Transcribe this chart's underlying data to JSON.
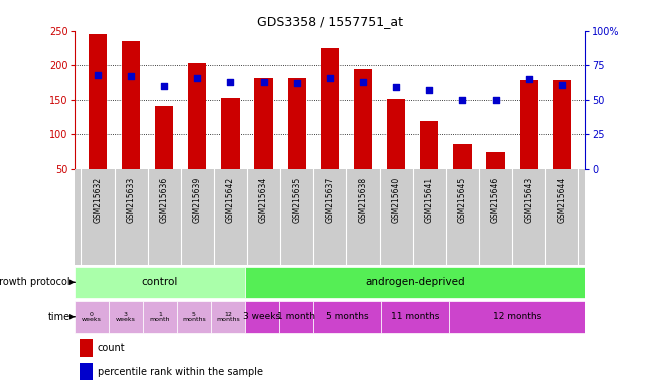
{
  "title": "GDS3358 / 1557751_at",
  "samples": [
    "GSM215632",
    "GSM215633",
    "GSM215636",
    "GSM215639",
    "GSM215642",
    "GSM215634",
    "GSM215635",
    "GSM215637",
    "GSM215638",
    "GSM215640",
    "GSM215641",
    "GSM215645",
    "GSM215646",
    "GSM215643",
    "GSM215644"
  ],
  "counts": [
    245,
    235,
    141,
    204,
    152,
    181,
    181,
    225,
    194,
    151,
    120,
    86,
    75,
    178,
    178
  ],
  "percentile": [
    68,
    67,
    60,
    66,
    63,
    63,
    62,
    66,
    63,
    59,
    57,
    50,
    50,
    65,
    61
  ],
  "ylim_left": [
    50,
    250
  ],
  "ylim_right": [
    0,
    100
  ],
  "yticks_left": [
    50,
    100,
    150,
    200,
    250
  ],
  "yticks_right": [
    0,
    25,
    50,
    75,
    100
  ],
  "bar_color": "#cc0000",
  "dot_color": "#0000cc",
  "bg_color": "#ffffff",
  "label_bg": "#cccccc",
  "control_color": "#aaffaa",
  "androgen_color": "#55ee55",
  "time_ctrl_color": "#ddaadd",
  "time_and_color": "#cc44cc",
  "control_label": "control",
  "androgen_label": "androgen-deprived",
  "growth_protocol_label": "growth protocol",
  "time_label": "time",
  "time_items_control": [
    "0\nweeks",
    "3\nweeks",
    "1\nmonth",
    "5\nmonths",
    "12\nmonths"
  ],
  "time_items_androgen": [
    "3 weeks",
    "1 month",
    "5 months",
    "11 months",
    "12 months"
  ],
  "androgen_groups": [
    1,
    1,
    2,
    2,
    4
  ],
  "legend_count": "count",
  "legend_pct": "percentile rank within the sample",
  "n_control": 5,
  "n_androgen": 10,
  "bar_width": 0.55
}
